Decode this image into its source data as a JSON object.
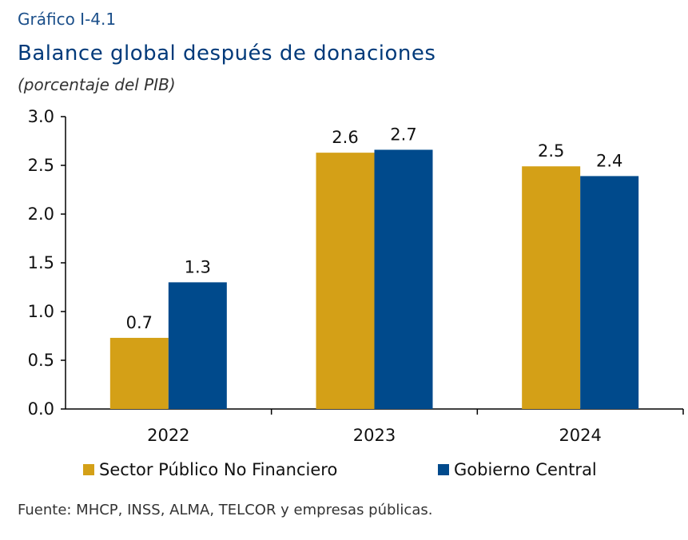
{
  "header": {
    "label": "Gráfico I-4.1",
    "title": "Balance global después de donaciones",
    "subtitle": "(porcentaje del PIB)"
  },
  "footer": {
    "source": "Fuente: MHCP, INSS, ALMA, TELCOR  y empresas públicas."
  },
  "colors": {
    "sector": "#D4A017",
    "gobierno": "#004A8C"
  },
  "chart_data": {
    "type": "bar",
    "categories": [
      "2022",
      "2023",
      "2024"
    ],
    "series": [
      {
        "name": "Sector Público No Financiero",
        "values": [
          0.73,
          2.63,
          2.49
        ],
        "labels": [
          "0.7",
          "2.6",
          "2.5"
        ]
      },
      {
        "name": "Gobierno Central",
        "values": [
          1.3,
          2.66,
          2.39
        ],
        "labels": [
          "1.3",
          "2.7",
          "2.4"
        ]
      }
    ],
    "ylim": [
      0,
      3.0
    ],
    "yticks": [
      "0.0",
      "0.5",
      "1.0",
      "1.5",
      "2.0",
      "2.5",
      "3.0"
    ],
    "grid": false,
    "legend_position": "bottom"
  }
}
